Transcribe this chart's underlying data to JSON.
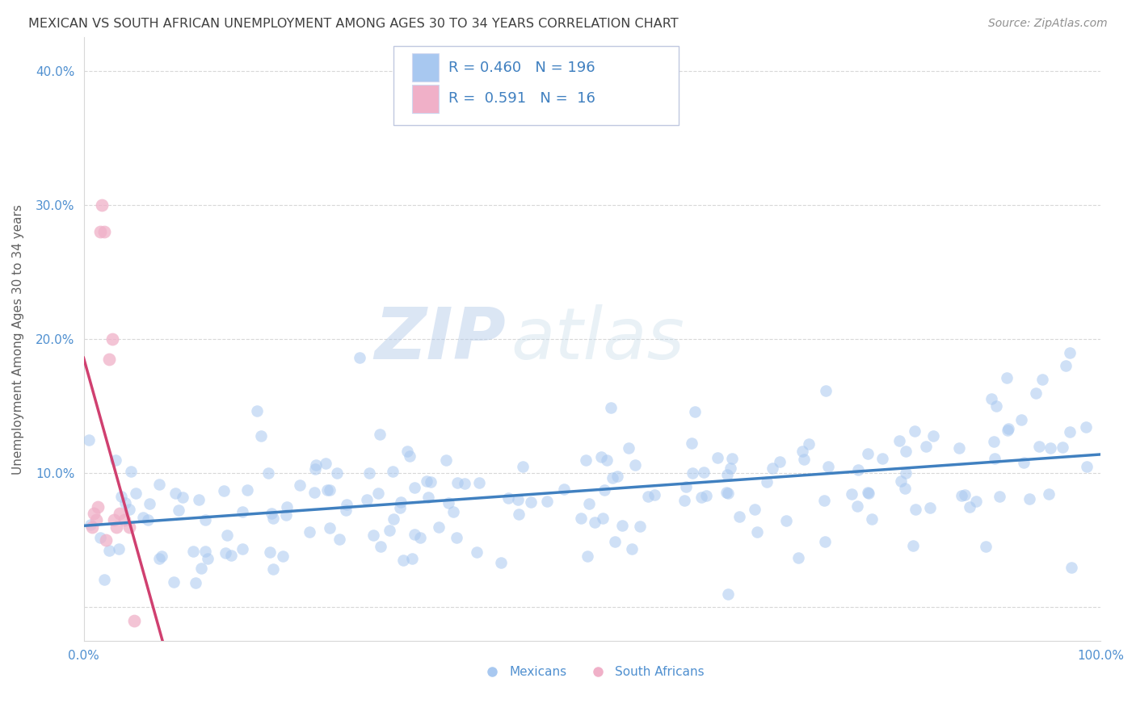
{
  "title": "MEXICAN VS SOUTH AFRICAN UNEMPLOYMENT AMONG AGES 30 TO 34 YEARS CORRELATION CHART",
  "source": "Source: ZipAtlas.com",
  "ylabel": "Unemployment Among Ages 30 to 34 years",
  "watermark_zip": "ZIP",
  "watermark_atlas": "atlas",
  "xlim": [
    0.0,
    1.0
  ],
  "ylim": [
    -0.025,
    0.425
  ],
  "mexican_R": 0.46,
  "mexican_N": 196,
  "sa_R": 0.591,
  "sa_N": 16,
  "mexican_scatter_color": "#a8c8f0",
  "sa_scatter_color": "#f0b0c8",
  "mexican_line_color": "#4080c0",
  "sa_line_color": "#d04070",
  "sa_dash_color": "#e090b0",
  "title_color": "#404040",
  "source_color": "#909090",
  "axis_label_color": "#606060",
  "tick_label_color": "#5090d0",
  "grid_color": "#d8d8d8",
  "background_color": "#ffffff",
  "legend_text_color": "#4080c0",
  "legend_border_color": "#c0c8e0",
  "sa_x": [
    0.008,
    0.01,
    0.012,
    0.014,
    0.016,
    0.018,
    0.02,
    0.022,
    0.025,
    0.028,
    0.03,
    0.032,
    0.035,
    0.04,
    0.045,
    0.05
  ],
  "sa_y": [
    0.06,
    0.07,
    0.065,
    0.075,
    0.28,
    0.3,
    0.28,
    0.05,
    0.185,
    0.2,
    0.065,
    0.06,
    0.07,
    0.065,
    0.06,
    -0.01
  ]
}
